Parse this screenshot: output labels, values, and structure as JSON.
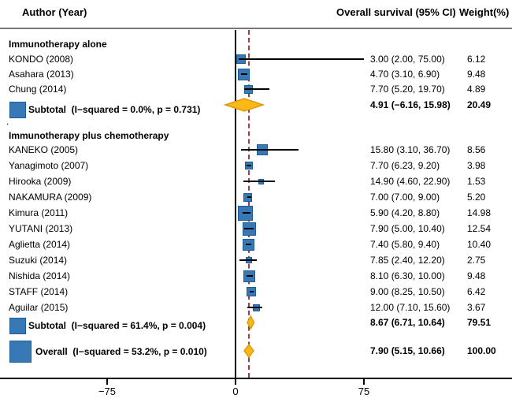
{
  "header": {
    "author_col": "Author (Year)",
    "effect_col": "Overall survival (95% CI)",
    "weight_col": "Weight(%)"
  },
  "misc": {
    "stray_dot": "."
  },
  "colors": {
    "box_fill": "#3878b4",
    "box_border": "#1d5d96",
    "diamond_fill": "#fcb814",
    "diamond_border": "#dd9a10",
    "dashed_line": "#a53e3e",
    "null_line": "#000000",
    "axis_line": "#000000",
    "header_rule": "#787878"
  },
  "chart_data": {
    "type": "forest",
    "title": "",
    "xlabel": "",
    "x_axis": {
      "ticks": [
        -75,
        0,
        75
      ],
      "tick_labels": [
        "−75",
        "0",
        "75"
      ]
    },
    "dashed_line_at": 7.9,
    "groups": [
      {
        "label": "Immunotherapy alone",
        "studies": [
          {
            "label": "KONDO (2008)",
            "est": 3.0,
            "lo": 2.0,
            "hi": 75.0,
            "weight": 6.12,
            "effect_text": "3.00 (2.00, 75.00)",
            "weight_text": "6.12"
          },
          {
            "label": "Asahara (2013)",
            "est": 4.7,
            "lo": 3.1,
            "hi": 6.9,
            "weight": 9.48,
            "effect_text": "4.70 (3.10, 6.90)",
            "weight_text": "9.48"
          },
          {
            "label": "Chung (2014)",
            "est": 7.7,
            "lo": 5.2,
            "hi": 19.7,
            "weight": 4.89,
            "effect_text": "7.70 (5.20, 19.70)",
            "weight_text": "4.89"
          }
        ],
        "subtotal": {
          "label": "Subtotal  (I−squared = 0.0%, p = 0.731)",
          "est": 4.91,
          "lo": -6.16,
          "hi": 15.98,
          "effect_text": "4.91 (−6.16, 15.98)",
          "weight_text": "20.49"
        }
      },
      {
        "label": "Immunotherapy plus chemotherapy",
        "studies": [
          {
            "label": "KANEKO (2005)",
            "est": 15.8,
            "lo": 3.1,
            "hi": 36.7,
            "weight": 8.56,
            "effect_text": "15.80 (3.10, 36.70)",
            "weight_text": "8.56"
          },
          {
            "label": "Yanagimoto (2007)",
            "est": 7.7,
            "lo": 6.23,
            "hi": 9.2,
            "weight": 3.98,
            "effect_text": "7.70 (6.23, 9.20)",
            "weight_text": "3.98"
          },
          {
            "label": "Hirooka (2009)",
            "est": 14.9,
            "lo": 4.6,
            "hi": 22.9,
            "weight": 1.53,
            "effect_text": "14.90 (4.60, 22.90)",
            "weight_text": "1.53"
          },
          {
            "label": "NAKAMURA (2009)",
            "est": 7.0,
            "lo": 7.0,
            "hi": 9.0,
            "weight": 5.2,
            "effect_text": "7.00 (7.00, 9.00)",
            "weight_text": "5.20"
          },
          {
            "label": "Kimura (2011)",
            "est": 5.9,
            "lo": 4.2,
            "hi": 8.8,
            "weight": 14.98,
            "effect_text": "5.90 (4.20, 8.80)",
            "weight_text": "14.98"
          },
          {
            "label": "YUTANI (2013)",
            "est": 7.9,
            "lo": 5.0,
            "hi": 10.4,
            "weight": 12.54,
            "effect_text": "7.90 (5.00, 10.40)",
            "weight_text": "12.54"
          },
          {
            "label": "Aglietta (2014)",
            "est": 7.4,
            "lo": 5.8,
            "hi": 9.4,
            "weight": 10.4,
            "effect_text": "7.40 (5.80, 9.40)",
            "weight_text": "10.40"
          },
          {
            "label": "Suzuki (2014)",
            "est": 7.85,
            "lo": 2.4,
            "hi": 12.2,
            "weight": 2.75,
            "effect_text": "7.85 (2.40, 12.20)",
            "weight_text": "2.75"
          },
          {
            "label": "Nishida (2014)",
            "est": 8.1,
            "lo": 6.3,
            "hi": 10.0,
            "weight": 9.48,
            "effect_text": "8.10 (6.30, 10.00)",
            "weight_text": "9.48"
          },
          {
            "label": "STAFF (2014)",
            "est": 9.0,
            "lo": 8.25,
            "hi": 10.5,
            "weight": 6.42,
            "effect_text": "9.00 (8.25, 10.50)",
            "weight_text": "6.42"
          },
          {
            "label": "Aguilar (2015)",
            "est": 12.0,
            "lo": 7.1,
            "hi": 15.6,
            "weight": 3.67,
            "effect_text": "12.00 (7.10, 15.60)",
            "weight_text": "3.67"
          }
        ],
        "subtotal": {
          "label": "Subtotal  (I−squared = 61.4%, p = 0.004)",
          "est": 8.67,
          "lo": 6.71,
          "hi": 10.64,
          "effect_text": "8.67 (6.71, 10.64)",
          "weight_text": "79.51"
        }
      }
    ],
    "overall": {
      "label": "Overall  (I−squared = 53.2%, p = 0.010)",
      "est": 7.9,
      "lo": 5.15,
      "hi": 10.66,
      "effect_text": "7.90 (5.15, 10.66)",
      "weight_text": "100.00"
    }
  }
}
